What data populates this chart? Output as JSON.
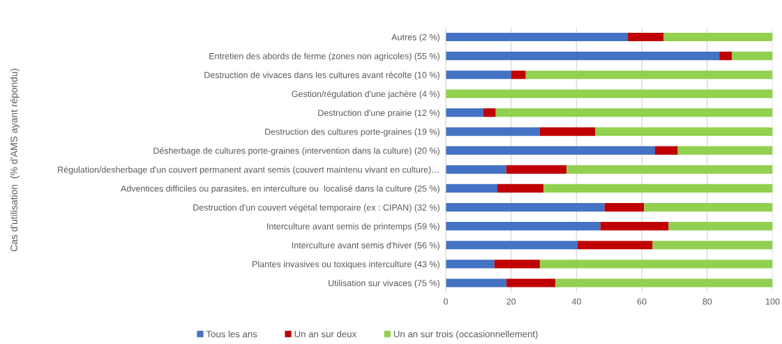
{
  "chart_data": {
    "type": "bar",
    "orientation": "horizontal",
    "stacked": true,
    "ylabel": "Cas d'utilisation  (% d'AMS ayant répondu)",
    "categories": [
      "Autres (2 %)",
      "Entretien des abords de ferme (zones non agricoles) (55 %)",
      "Destruction de vivaces dans les cultures avant récolte (10 %)",
      "Gestion/régulation d'une jachère (4 %)",
      "Destruction d'une prairie (12 %)",
      "Destruction des cultures porte-graines (19 %)",
      "Désherbage de cultures porte-graines (intervention dans la culture) (20 %)",
      "Régulation/desherbage d'un couvert permanent avant semis (couvert maintenu vivant en culture)…",
      "Adventices difficiles ou parasites, en interculture ou  localisé dans la culture (25 %)",
      "Destruction d'un couvert végétal temporaire (ex : CIPAN) (32 %)",
      "Interculture avant semis de printemps (59 %)",
      "Interculture avant semis d'hiver (56 %)",
      "Plantes invasives ou toxiques interculture (43 %)",
      "Utilisation sur vivaces (75 %)"
    ],
    "series": [
      {
        "name": "Tous les ans",
        "color": "#4472c4",
        "values": [
          55.6,
          83.7,
          20,
          0,
          11.5,
          28.8,
          64,
          18.5,
          15.8,
          48.6,
          47.3,
          40.3,
          14.9,
          18.6
        ]
      },
      {
        "name": "Un an sur deux",
        "color": "#c00000",
        "values": [
          11.1,
          3.8,
          4.5,
          0,
          3.8,
          17,
          7,
          18.5,
          14.1,
          12.1,
          20.9,
          23,
          13.9,
          14.9
        ]
      },
      {
        "name": "Un an sur trois (occasionnellement)",
        "color": "#92d050",
        "values": [
          33.3,
          12.5,
          75.5,
          100,
          84.7,
          54.2,
          29,
          63,
          70.1,
          39.3,
          31.8,
          36.7,
          71.2,
          66.5
        ]
      }
    ],
    "xlim": [
      0,
      100
    ],
    "xticks": [
      0,
      20,
      40,
      60,
      80,
      100
    ],
    "grid": "x",
    "legend": "bottom"
  }
}
